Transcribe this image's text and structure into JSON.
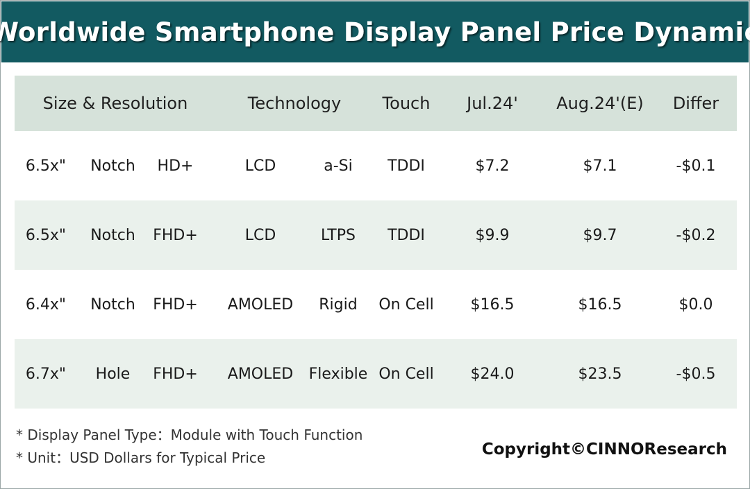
{
  "title": "Worldwide Smartphone Display Panel Price Dynamic",
  "headers": {
    "size_resolution": "Size & Resolution",
    "technology": "Technology",
    "touch": "Touch",
    "jul": "Jul.24'",
    "aug": "Aug.24'(E)",
    "differ": "Differ"
  },
  "rows": [
    {
      "size": "6.5x\"",
      "shape": "Notch",
      "resolution": "HD+",
      "panel": "LCD",
      "backplane": "a-Si",
      "touch": "TDDI",
      "jul": "$7.2",
      "aug": "$7.1",
      "differ": "-$0.1"
    },
    {
      "size": "6.5x\"",
      "shape": "Notch",
      "resolution": "FHD+",
      "panel": "LCD",
      "backplane": "LTPS",
      "touch": "TDDI",
      "jul": "$9.9",
      "aug": "$9.7",
      "differ": "-$0.2"
    },
    {
      "size": "6.4x\"",
      "shape": "Notch",
      "resolution": "FHD+",
      "panel": "AMOLED",
      "backplane": "Rigid",
      "touch": "On Cell",
      "jul": "$16.5",
      "aug": "$16.5",
      "differ": "$0.0"
    },
    {
      "size": "6.7x\"",
      "shape": "Hole",
      "resolution": "FHD+",
      "panel": "AMOLED",
      "backplane": "Flexible",
      "touch": "On Cell",
      "jul": "$24.0",
      "aug": "$23.5",
      "differ": "-$0.5"
    }
  ],
  "footnotes": [
    "* Display Panel Type：Module with Touch Function",
    "* Unit：USD Dollars for Typical Price"
  ],
  "copyright": "Copyright©CINNOResearch",
  "colors": {
    "banner": "#125a61",
    "header_row": "#d6e2da",
    "shaded_row": "#eaf1ec"
  }
}
